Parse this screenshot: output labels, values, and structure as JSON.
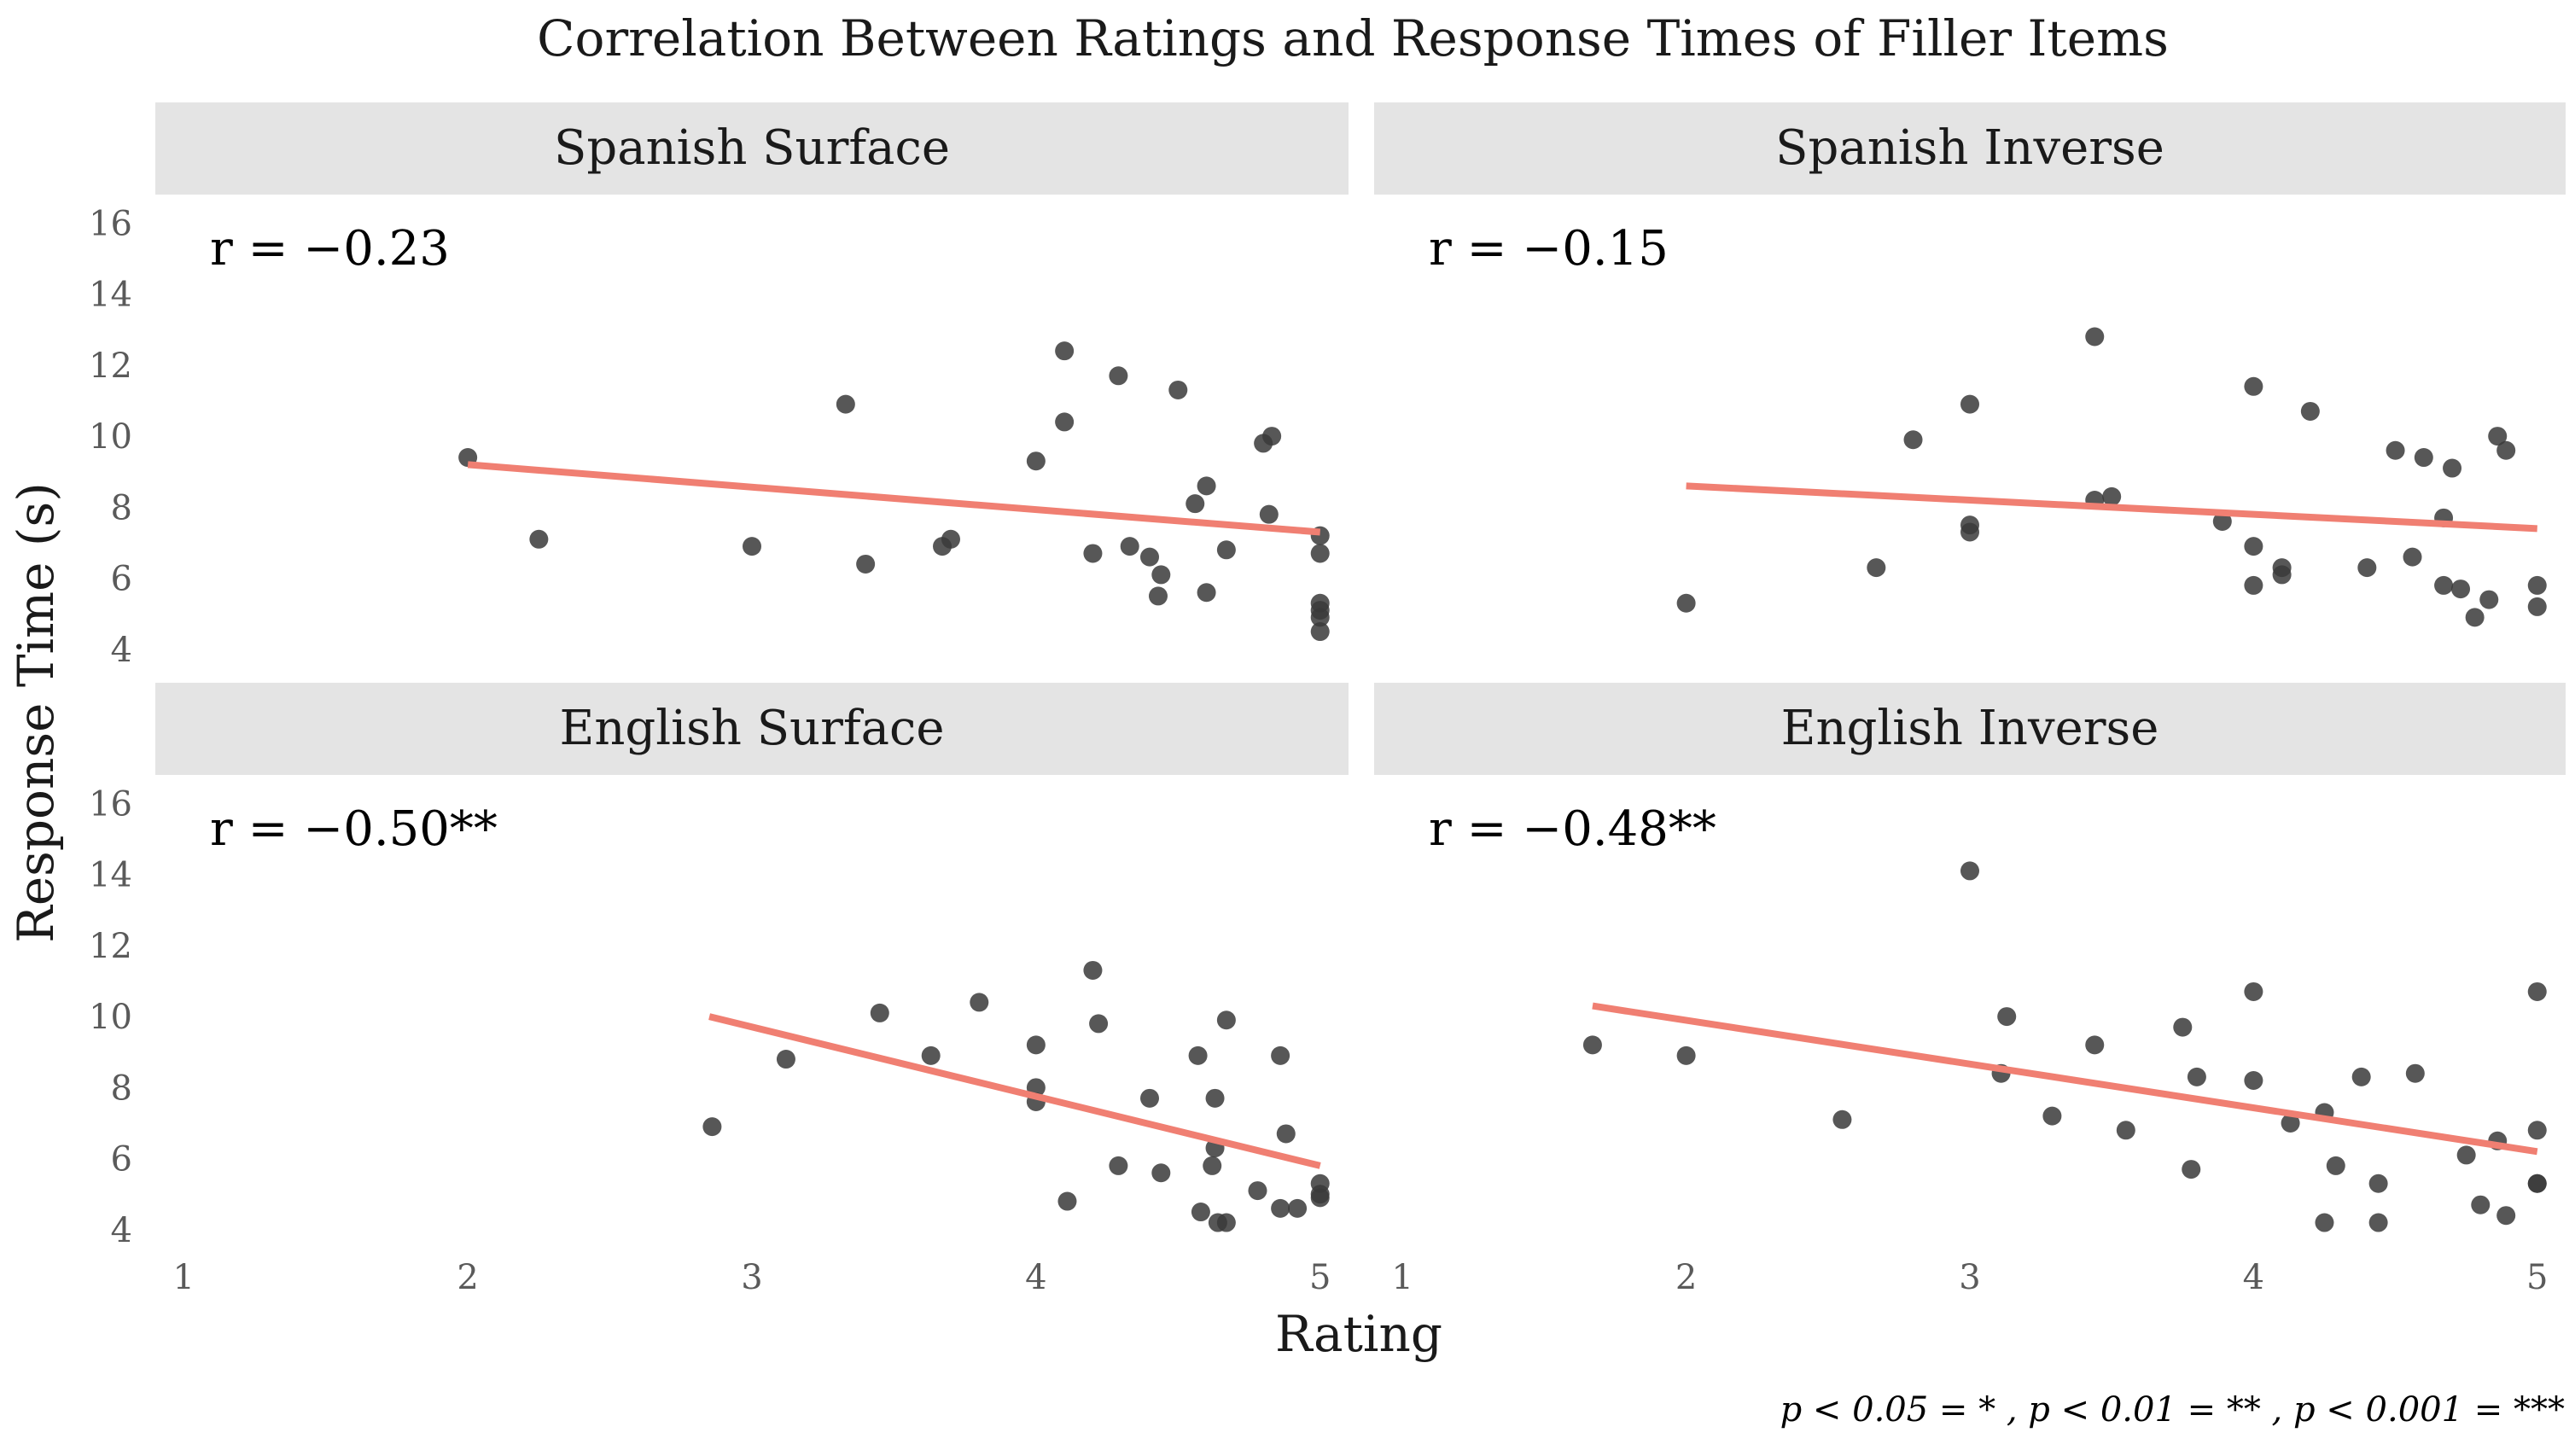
{
  "chart_data": {
    "type": "scatter",
    "title": "Correlation Between Ratings and Response Times of Filler Items",
    "xlabel": "Rating",
    "ylabel": "Response Time (s)",
    "xlim": [
      0.9,
      5.1
    ],
    "ylim": [
      3.3,
      16.8
    ],
    "x_ticks": [
      "1",
      "2",
      "3",
      "4",
      "5"
    ],
    "y_ticks": [
      "4",
      "6",
      "8",
      "10",
      "12",
      "14",
      "16"
    ],
    "point_color": "#3a3a3a",
    "line_color": "#f07f72",
    "strip_color": "#e4e4e4",
    "significance_note": "p < 0.05 = * ,  p < 0.01 = ** ,  p < 0.001 = ***",
    "panels": [
      {
        "strip": "Spanish Surface",
        "r_label": "r = −0.23",
        "fit": {
          "x": [
            2,
            5
          ],
          "y": [
            9.2,
            7.3
          ]
        },
        "points": [
          [
            2.0,
            9.4
          ],
          [
            2.25,
            7.1
          ],
          [
            3.0,
            6.9
          ],
          [
            3.33,
            10.9
          ],
          [
            3.4,
            6.4
          ],
          [
            3.67,
            6.9
          ],
          [
            3.7,
            7.1
          ],
          [
            4.0,
            9.3
          ],
          [
            4.1,
            12.4
          ],
          [
            4.1,
            10.4
          ],
          [
            4.2,
            6.7
          ],
          [
            4.29,
            11.7
          ],
          [
            4.33,
            6.9
          ],
          [
            4.4,
            6.6
          ],
          [
            4.43,
            5.5
          ],
          [
            4.44,
            6.1
          ],
          [
            4.5,
            11.3
          ],
          [
            4.56,
            8.1
          ],
          [
            4.6,
            8.6
          ],
          [
            4.6,
            5.6
          ],
          [
            4.67,
            6.8
          ],
          [
            4.8,
            9.8
          ],
          [
            4.82,
            7.8
          ],
          [
            4.83,
            10.0
          ],
          [
            5.0,
            7.2
          ],
          [
            5.0,
            6.7
          ],
          [
            5.0,
            5.3
          ],
          [
            5.0,
            5.1
          ],
          [
            5.0,
            4.9
          ],
          [
            5.0,
            4.5
          ]
        ]
      },
      {
        "strip": "Spanish Inverse",
        "r_label": "r = −0.15",
        "fit": {
          "x": [
            2,
            5
          ],
          "y": [
            8.6,
            7.4
          ]
        },
        "points": [
          [
            2.0,
            5.3
          ],
          [
            2.67,
            6.3
          ],
          [
            2.8,
            9.9
          ],
          [
            3.0,
            10.9
          ],
          [
            3.0,
            7.5
          ],
          [
            3.0,
            7.3
          ],
          [
            3.44,
            12.8
          ],
          [
            3.44,
            8.2
          ],
          [
            3.5,
            8.3
          ],
          [
            3.89,
            7.6
          ],
          [
            4.0,
            11.4
          ],
          [
            4.0,
            6.9
          ],
          [
            4.0,
            5.8
          ],
          [
            4.1,
            6.1
          ],
          [
            4.1,
            6.3
          ],
          [
            4.2,
            10.7
          ],
          [
            4.4,
            6.3
          ],
          [
            4.5,
            9.6
          ],
          [
            4.56,
            6.6
          ],
          [
            4.6,
            9.4
          ],
          [
            4.67,
            7.7
          ],
          [
            4.67,
            5.8
          ],
          [
            4.7,
            9.1
          ],
          [
            4.73,
            5.7
          ],
          [
            4.78,
            4.9
          ],
          [
            4.83,
            5.4
          ],
          [
            4.86,
            10.0
          ],
          [
            4.89,
            9.6
          ],
          [
            5.0,
            5.8
          ],
          [
            5.0,
            5.2
          ]
        ]
      },
      {
        "strip": "English Surface",
        "r_label": "r = −0.50**",
        "fit": {
          "x": [
            2.85,
            5
          ],
          "y": [
            10.0,
            5.8
          ]
        },
        "points": [
          [
            2.86,
            6.9
          ],
          [
            3.12,
            8.8
          ],
          [
            3.45,
            10.1
          ],
          [
            3.63,
            8.9
          ],
          [
            3.8,
            10.4
          ],
          [
            4.0,
            9.2
          ],
          [
            4.0,
            8.0
          ],
          [
            4.0,
            7.6
          ],
          [
            4.11,
            4.8
          ],
          [
            4.2,
            11.3
          ],
          [
            4.22,
            9.8
          ],
          [
            4.29,
            5.8
          ],
          [
            4.4,
            7.7
          ],
          [
            4.44,
            5.6
          ],
          [
            4.57,
            8.9
          ],
          [
            4.58,
            4.5
          ],
          [
            4.62,
            5.8
          ],
          [
            4.63,
            7.7
          ],
          [
            4.63,
            6.3
          ],
          [
            4.64,
            4.2
          ],
          [
            4.67,
            9.9
          ],
          [
            4.67,
            4.2
          ],
          [
            4.78,
            5.1
          ],
          [
            4.86,
            8.9
          ],
          [
            4.86,
            4.6
          ],
          [
            4.88,
            6.7
          ],
          [
            4.92,
            4.6
          ],
          [
            5.0,
            5.3
          ],
          [
            5.0,
            5.0
          ],
          [
            5.0,
            4.9
          ]
        ]
      },
      {
        "strip": "English Inverse",
        "r_label": "r = −0.48**",
        "fit": {
          "x": [
            1.67,
            5
          ],
          "y": [
            10.3,
            6.2
          ]
        },
        "points": [
          [
            1.67,
            9.2
          ],
          [
            2.0,
            8.9
          ],
          [
            2.55,
            7.1
          ],
          [
            3.0,
            14.1
          ],
          [
            3.11,
            8.4
          ],
          [
            3.13,
            10.0
          ],
          [
            3.29,
            7.2
          ],
          [
            3.44,
            9.2
          ],
          [
            3.55,
            6.8
          ],
          [
            3.75,
            9.7
          ],
          [
            3.78,
            5.7
          ],
          [
            3.8,
            8.3
          ],
          [
            4.0,
            10.7
          ],
          [
            4.0,
            8.2
          ],
          [
            4.13,
            7.0
          ],
          [
            4.25,
            7.3
          ],
          [
            4.25,
            4.2
          ],
          [
            4.29,
            5.8
          ],
          [
            4.38,
            8.3
          ],
          [
            4.44,
            5.3
          ],
          [
            4.44,
            4.2
          ],
          [
            4.57,
            8.4
          ],
          [
            4.75,
            6.1
          ],
          [
            4.8,
            4.7
          ],
          [
            4.86,
            6.5
          ],
          [
            4.89,
            4.4
          ],
          [
            5.0,
            10.7
          ],
          [
            5.0,
            6.8
          ],
          [
            5.0,
            5.3
          ],
          [
            5.0,
            5.3
          ]
        ]
      }
    ]
  }
}
